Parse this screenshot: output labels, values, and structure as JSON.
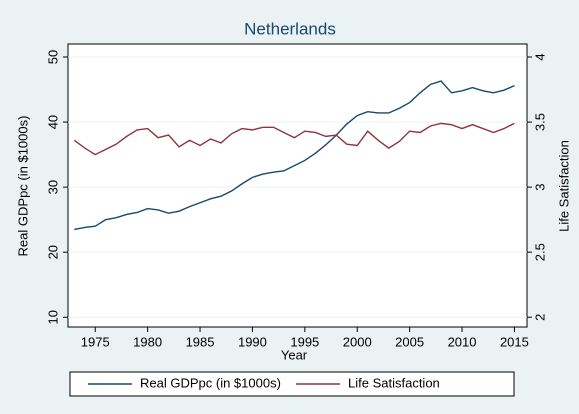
{
  "chart_data": {
    "type": "line",
    "title": "Netherlands",
    "x_label": "Year",
    "y_label": "Real GDPpc (in $1000s)",
    "y2_label": "Life Satisfaction",
    "x": [
      1973,
      1974,
      1975,
      1976,
      1977,
      1978,
      1979,
      1980,
      1981,
      1982,
      1983,
      1984,
      1985,
      1986,
      1987,
      1988,
      1989,
      1990,
      1991,
      1992,
      1993,
      1994,
      1995,
      1996,
      1997,
      1998,
      1999,
      2000,
      2001,
      2002,
      2003,
      2004,
      2005,
      2006,
      2007,
      2008,
      2009,
      2010,
      2011,
      2012,
      2013,
      2014,
      2015
    ],
    "series": [
      {
        "name": "Real GDPpc (in $1000s)",
        "color": "#1a476f",
        "axis": "y",
        "values": [
          23.5,
          23.8,
          24,
          25,
          25.3,
          25.8,
          26.1,
          26.7,
          26.5,
          26,
          26.3,
          27,
          27.6,
          28.2,
          28.6,
          29.4,
          30.5,
          31.5,
          32,
          32.3,
          32.5,
          33.3,
          34.1,
          35.2,
          36.5,
          38,
          39.7,
          41,
          41.6,
          41.4,
          41.4,
          42.1,
          43,
          44.5,
          45.8,
          46.3,
          44.5,
          44.8,
          45.3,
          44.8,
          44.5,
          44.9,
          45.6
        ]
      },
      {
        "name": "Life Satisfaction",
        "color": "#90353b",
        "axis": "y2",
        "values": [
          3.36,
          3.3,
          3.25,
          3.29,
          3.33,
          3.39,
          3.44,
          3.45,
          3.38,
          3.4,
          3.31,
          3.36,
          3.32,
          3.37,
          3.34,
          3.41,
          3.45,
          3.44,
          3.46,
          3.46,
          3.42,
          3.38,
          3.43,
          3.42,
          3.39,
          3.4,
          3.33,
          3.32,
          3.43,
          3.36,
          3.3,
          3.35,
          3.43,
          3.42,
          3.47,
          3.49,
          3.48,
          3.45,
          3.48,
          3.45,
          3.42,
          3.45,
          3.49
        ]
      }
    ],
    "xlim": [
      1972.4,
      2016.2
    ],
    "xticks": [
      1975,
      1980,
      1985,
      1990,
      1995,
      2000,
      2005,
      2010,
      2015
    ],
    "ylim": [
      8.5,
      52
    ],
    "yticks": [
      10,
      20,
      30,
      40,
      50
    ],
    "y2lim": [
      1.925,
      4.1
    ],
    "y2ticks": [
      2,
      2.5,
      3,
      3.5,
      4
    ],
    "grid": true,
    "legend": "bottom"
  }
}
